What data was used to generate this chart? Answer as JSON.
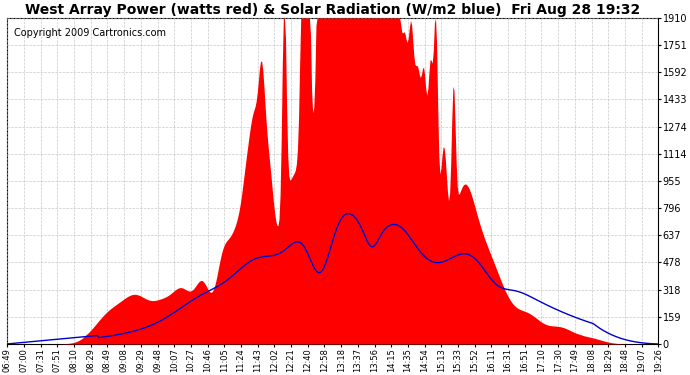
{
  "title": "West Array Power (watts red) & Solar Radiation (W/m2 blue)  Fri Aug 28 19:32",
  "copyright": "Copyright 2009 Cartronics.com",
  "ylim": [
    0,
    1910.4
  ],
  "yticks": [
    0.0,
    159.2,
    318.4,
    477.6,
    636.8,
    796.0,
    955.2,
    1114.4,
    1273.6,
    1432.8,
    1592.0,
    1751.2,
    1910.4
  ],
  "bg_color": "#ffffff",
  "grid_color": "#bbbbbb",
  "power_color": "#ff0000",
  "radiation_color": "#0000cc",
  "title_fontsize": 10,
  "copyright_fontsize": 7,
  "xtick_labels": [
    "06:49",
    "07:00",
    "07:31",
    "07:51",
    "08:10",
    "08:29",
    "08:49",
    "09:08",
    "09:29",
    "09:48",
    "10:07",
    "10:27",
    "10:46",
    "11:05",
    "11:24",
    "11:43",
    "12:02",
    "12:21",
    "12:40",
    "12:58",
    "13:18",
    "13:37",
    "13:56",
    "14:15",
    "14:35",
    "14:54",
    "15:13",
    "15:33",
    "15:52",
    "16:11",
    "16:31",
    "16:51",
    "17:10",
    "17:30",
    "17:49",
    "18:08",
    "18:29",
    "18:48",
    "19:07",
    "19:26"
  ]
}
